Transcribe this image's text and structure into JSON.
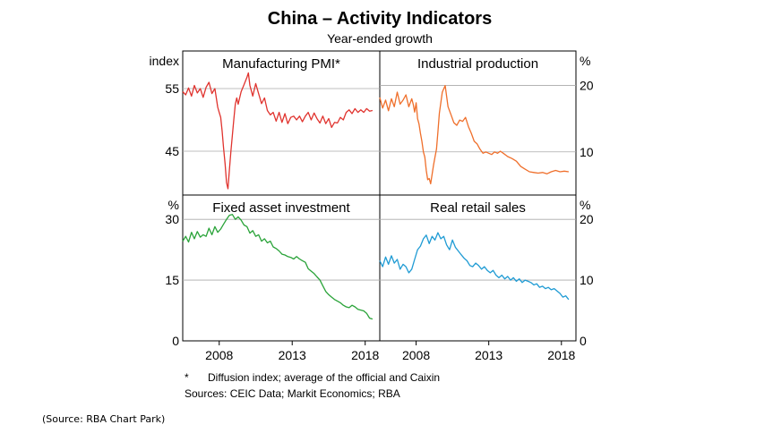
{
  "title": "China – Activity Indicators",
  "subtitle": "Year-ended growth",
  "footnote_marker": "*",
  "footnote": "Diffusion index; average of the official and Caixin",
  "sources": "Sources: CEIC Data; Markit Economics; RBA",
  "source_caption": "(Source: RBA Chart Park)",
  "chart_data": [
    {
      "type": "line",
      "title": "Manufacturing PMI*",
      "unit_label": "index",
      "axis_side": "left",
      "ylim": [
        38,
        61
      ],
      "yticks": [
        45,
        55
      ],
      "xlim": [
        2005.5,
        2019
      ],
      "xticks": [],
      "color": "#e0332e",
      "series": [
        {
          "x": [
            2005.5,
            2005.7,
            2005.9,
            2006.1,
            2006.3,
            2006.5,
            2006.7,
            2006.9,
            2007.1,
            2007.3,
            2007.5,
            2007.7,
            2007.8,
            2007.9,
            2008.0,
            2008.1,
            2008.2,
            2008.3,
            2008.4,
            2008.5,
            2008.6,
            2008.7,
            2008.8,
            2008.9,
            2009.0,
            2009.1,
            2009.2,
            2009.3,
            2009.5,
            2009.7,
            2009.9,
            2010.0,
            2010.1,
            2010.3,
            2010.5,
            2010.7,
            2010.9,
            2011.1,
            2011.3,
            2011.5,
            2011.7,
            2011.9,
            2012.1,
            2012.3,
            2012.5,
            2012.7,
            2012.9,
            2013.1,
            2013.3,
            2013.5,
            2013.7,
            2013.9,
            2014.1,
            2014.3,
            2014.5,
            2014.7,
            2014.9,
            2015.1,
            2015.3,
            2015.5,
            2015.7,
            2015.9,
            2016.1,
            2016.3,
            2016.5,
            2016.7,
            2016.9,
            2017.1,
            2017.3,
            2017.5,
            2017.7,
            2017.9,
            2018.1,
            2018.3,
            2018.5
          ],
          "values": [
            54.5,
            54.0,
            55.1,
            53.8,
            55.5,
            54.3,
            55.0,
            53.6,
            55.2,
            56.0,
            54.2,
            55.0,
            53.5,
            52.0,
            51.2,
            50.4,
            48.2,
            45.5,
            43.0,
            40.0,
            39.0,
            42.0,
            45.0,
            47.5,
            50.0,
            52.5,
            53.5,
            52.5,
            54.5,
            55.6,
            56.8,
            57.5,
            55.5,
            53.8,
            55.8,
            54.2,
            52.6,
            53.5,
            51.5,
            50.8,
            51.2,
            49.8,
            51.2,
            49.6,
            51.0,
            49.4,
            50.4,
            50.6,
            50.0,
            50.6,
            49.7,
            50.6,
            51.2,
            50.0,
            51.1,
            50.2,
            49.5,
            50.6,
            49.4,
            50.2,
            48.8,
            49.6,
            49.5,
            50.4,
            50.0,
            51.2,
            51.6,
            51.0,
            51.8,
            51.2,
            51.6,
            51.2,
            51.8,
            51.4,
            51.5
          ]
        }
      ]
    },
    {
      "type": "line",
      "title": "Industrial production",
      "unit_label": "%",
      "axis_side": "right",
      "ylim": [
        3.5,
        25.2
      ],
      "yticks": [
        10,
        20
      ],
      "xlim": [
        2005.5,
        2019
      ],
      "xticks": [],
      "color": "#ef6f2b",
      "series": [
        {
          "x": [
            2005.5,
            2005.7,
            2005.9,
            2006.1,
            2006.3,
            2006.5,
            2006.7,
            2006.9,
            2007.1,
            2007.3,
            2007.5,
            2007.7,
            2007.8,
            2007.9,
            2008.0,
            2008.1,
            2008.2,
            2008.3,
            2008.4,
            2008.5,
            2008.6,
            2008.7,
            2008.8,
            2008.9,
            2009.0,
            2009.1,
            2009.2,
            2009.3,
            2009.4,
            2009.5,
            2009.6,
            2009.8,
            2010.0,
            2010.1,
            2010.2,
            2010.4,
            2010.6,
            2010.8,
            2011.0,
            2011.2,
            2011.4,
            2011.6,
            2011.8,
            2012.0,
            2012.2,
            2012.4,
            2012.6,
            2012.8,
            2013.0,
            2013.2,
            2013.4,
            2013.6,
            2013.8,
            2014.0,
            2014.3,
            2014.6,
            2014.9,
            2015.2,
            2015.5,
            2015.8,
            2016.1,
            2016.4,
            2016.7,
            2017.0,
            2017.3,
            2017.6,
            2017.9,
            2018.2,
            2018.5
          ],
          "values": [
            18.2,
            16.6,
            17.8,
            16.2,
            18.0,
            16.8,
            19.0,
            17.2,
            17.8,
            18.6,
            16.8,
            18.0,
            17.2,
            16.0,
            17.4,
            15.0,
            14.2,
            12.8,
            11.6,
            10.0,
            9.2,
            7.2,
            5.8,
            6.0,
            5.2,
            6.6,
            8.0,
            9.2,
            10.4,
            13.0,
            15.8,
            19.0,
            20.0,
            18.4,
            16.8,
            15.6,
            14.4,
            14.0,
            14.8,
            14.6,
            15.2,
            13.8,
            12.8,
            11.6,
            11.2,
            10.4,
            9.8,
            10.0,
            9.8,
            9.6,
            10.0,
            9.8,
            10.1,
            9.8,
            9.3,
            9.0,
            8.6,
            7.8,
            7.4,
            7.0,
            6.9,
            6.8,
            6.9,
            6.7,
            7.0,
            7.2,
            7.0,
            7.1,
            7.0
          ]
        }
      ]
    },
    {
      "type": "line",
      "title": "Fixed asset investment",
      "unit_label": "%",
      "axis_side": "left",
      "ylim": [
        0,
        36
      ],
      "yticks": [
        0,
        15,
        30
      ],
      "xlim": [
        2005.5,
        2019
      ],
      "xticks": [
        2008,
        2013,
        2018
      ],
      "color": "#2aa339",
      "series": [
        {
          "x": [
            2005.5,
            2005.7,
            2005.9,
            2006.1,
            2006.3,
            2006.5,
            2006.7,
            2006.9,
            2007.1,
            2007.3,
            2007.5,
            2007.7,
            2007.9,
            2008.1,
            2008.3,
            2008.5,
            2008.7,
            2008.9,
            2009.1,
            2009.3,
            2009.5,
            2009.7,
            2009.9,
            2010.1,
            2010.3,
            2010.5,
            2010.7,
            2010.9,
            2011.1,
            2011.3,
            2011.5,
            2011.7,
            2011.9,
            2012.1,
            2012.3,
            2012.5,
            2012.7,
            2012.9,
            2013.1,
            2013.3,
            2013.5,
            2013.7,
            2013.9,
            2014.1,
            2014.3,
            2014.5,
            2014.7,
            2014.9,
            2015.1,
            2015.3,
            2015.5,
            2015.7,
            2015.9,
            2016.1,
            2016.3,
            2016.5,
            2016.7,
            2016.9,
            2017.1,
            2017.3,
            2017.5,
            2017.7,
            2017.9,
            2018.1,
            2018.3,
            2018.5
          ],
          "values": [
            24.6,
            25.8,
            24.4,
            26.8,
            25.2,
            27.0,
            25.6,
            26.2,
            25.8,
            27.8,
            26.2,
            28.2,
            26.8,
            27.6,
            28.8,
            30.0,
            31.0,
            31.2,
            30.0,
            30.6,
            29.8,
            28.6,
            28.2,
            26.6,
            27.2,
            25.8,
            26.2,
            24.6,
            25.2,
            24.2,
            24.6,
            23.2,
            22.8,
            22.2,
            21.4,
            21.2,
            20.8,
            20.6,
            20.2,
            20.8,
            20.2,
            19.8,
            19.4,
            17.8,
            17.2,
            16.6,
            15.8,
            15.0,
            13.6,
            12.2,
            11.4,
            10.8,
            10.2,
            9.8,
            9.4,
            8.8,
            8.4,
            8.2,
            8.8,
            8.4,
            7.8,
            7.6,
            7.4,
            6.8,
            5.6,
            5.4
          ]
        }
      ]
    },
    {
      "type": "line",
      "title": "Real retail sales",
      "unit_label": "%",
      "axis_side": "right",
      "ylim": [
        0,
        24
      ],
      "yticks": [
        0,
        10,
        20
      ],
      "xlim": [
        2005.5,
        2019
      ],
      "xticks": [
        2008,
        2013,
        2018
      ],
      "color": "#1f9bd4",
      "series": [
        {
          "x": [
            2005.5,
            2005.7,
            2005.9,
            2006.1,
            2006.3,
            2006.5,
            2006.7,
            2006.9,
            2007.1,
            2007.3,
            2007.5,
            2007.7,
            2007.9,
            2008.1,
            2008.3,
            2008.5,
            2008.7,
            2008.9,
            2009.1,
            2009.3,
            2009.5,
            2009.7,
            2009.9,
            2010.1,
            2010.3,
            2010.5,
            2010.7,
            2010.9,
            2011.1,
            2011.3,
            2011.5,
            2011.7,
            2011.9,
            2012.1,
            2012.3,
            2012.5,
            2012.7,
            2012.9,
            2013.1,
            2013.3,
            2013.5,
            2013.7,
            2013.9,
            2014.1,
            2014.3,
            2014.5,
            2014.7,
            2014.9,
            2015.1,
            2015.3,
            2015.5,
            2015.7,
            2015.9,
            2016.1,
            2016.3,
            2016.5,
            2016.7,
            2016.9,
            2017.1,
            2017.3,
            2017.5,
            2017.7,
            2017.9,
            2018.1,
            2018.3,
            2018.5
          ],
          "values": [
            13.2,
            12.2,
            13.8,
            12.6,
            14.0,
            12.8,
            13.4,
            11.8,
            12.6,
            12.2,
            11.2,
            11.8,
            13.4,
            15.0,
            15.6,
            16.8,
            17.4,
            16.0,
            17.2,
            16.6,
            17.8,
            16.8,
            17.2,
            15.8,
            15.0,
            16.6,
            15.4,
            14.8,
            14.2,
            13.6,
            13.2,
            12.4,
            12.2,
            12.8,
            12.4,
            11.8,
            12.2,
            11.6,
            11.2,
            11.6,
            10.8,
            10.4,
            10.8,
            10.2,
            10.6,
            10.0,
            10.4,
            9.8,
            10.2,
            9.6,
            10.0,
            9.8,
            9.6,
            9.2,
            9.4,
            8.8,
            9.0,
            8.6,
            8.8,
            8.4,
            8.6,
            8.2,
            7.8,
            7.2,
            7.4,
            6.8
          ]
        }
      ]
    }
  ]
}
